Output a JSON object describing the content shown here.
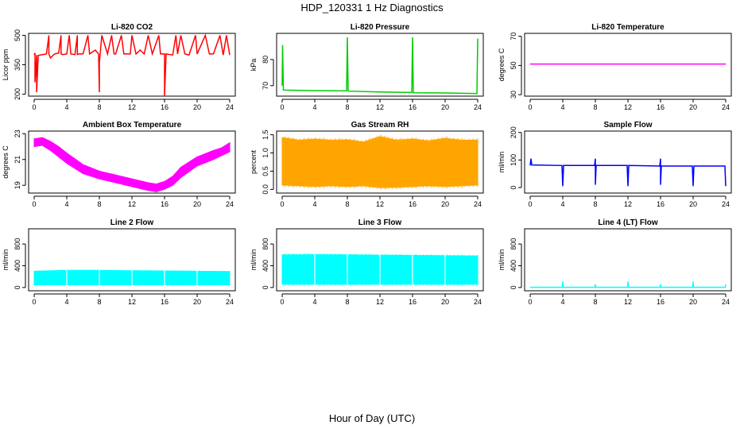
{
  "title": "HDP_120331  1 Hz Diagnostics",
  "xlabel": "Hour of Day (UTC)",
  "chart_data": [
    {
      "type": "line",
      "title": "Li-820 CO2",
      "ylabel": "Licor ppm",
      "color": "#ff0000",
      "xlim": [
        0,
        24
      ],
      "xticks": [
        0,
        4,
        8,
        12,
        16,
        20,
        24
      ],
      "ylim": [
        190,
        510
      ],
      "yticks": [
        200,
        350,
        500
      ],
      "series": [
        {
          "name": "CO2",
          "x": [
            0,
            0.1,
            0.1,
            0.3,
            0.3,
            0.5,
            1.5,
            1.8,
            1.8,
            2.0,
            2.5,
            3.0,
            3.3,
            3.3,
            3.5,
            4.0,
            4.3,
            4.5,
            5.0,
            5.3,
            5.3,
            5.5,
            6.0,
            6.6,
            6.8,
            7.5,
            7.9,
            8.0,
            8.0,
            8.1,
            8.3,
            9.0,
            9.5,
            9.8,
            10.0,
            10.7,
            11.0,
            11.8,
            12.0,
            12.5,
            13.0,
            13.5,
            14.0,
            14.5,
            15.3,
            15.5,
            16.0,
            16.0,
            16.2,
            17.0,
            17.4,
            17.6,
            18.0,
            18.5,
            19.0,
            19.8,
            20.0,
            21.0,
            21.5,
            22.0,
            22.8,
            23.2,
            23.6,
            24.0
          ],
          "y": [
            400,
            410,
            260,
            400,
            210,
            398,
            405,
            500,
            405,
            385,
            405,
            410,
            500,
            405,
            402,
            405,
            500,
            405,
            402,
            500,
            402,
            405,
            405,
            500,
            405,
            425,
            405,
            210,
            360,
            405,
            500,
            405,
            500,
            405,
            405,
            500,
            405,
            405,
            500,
            405,
            425,
            405,
            500,
            405,
            500,
            405,
            405,
            190,
            405,
            400,
            500,
            405,
            500,
            405,
            400,
            500,
            405,
            500,
            405,
            405,
            500,
            400,
            500,
            400
          ]
        }
      ]
    },
    {
      "type": "line",
      "title": "Li-820 Pressure",
      "ylabel": "kPa",
      "color": "#00cc00",
      "xlim": [
        0,
        24
      ],
      "xticks": [
        0,
        4,
        8,
        12,
        16,
        20,
        24
      ],
      "ylim": [
        66,
        90
      ],
      "yticks": [
        70,
        80
      ],
      "series": [
        {
          "name": "Pressure",
          "x": [
            0,
            0.05,
            0.15,
            0.3,
            4.0,
            7.9,
            8.0,
            8.1,
            12.0,
            15.9,
            16.0,
            16.1,
            20.0,
            23.9,
            24.0
          ],
          "y": [
            70,
            85.5,
            68.4,
            68.3,
            68.1,
            68.0,
            88.5,
            67.9,
            67.6,
            67.4,
            88.5,
            67.3,
            67.2,
            67.0,
            88.0
          ]
        }
      ]
    },
    {
      "type": "line",
      "title": "Li-820 Temperature",
      "ylabel": "degrees C",
      "color": "#ff00ff",
      "xlim": [
        0,
        24
      ],
      "xticks": [
        0,
        4,
        8,
        12,
        16,
        20,
        24
      ],
      "ylim": [
        29,
        72
      ],
      "yticks": [
        30,
        50,
        70
      ],
      "series": [
        {
          "name": "Temperature",
          "x": [
            0,
            24
          ],
          "y": [
            51,
            51
          ]
        }
      ]
    },
    {
      "type": "area",
      "title": "Ambient Box Temperature",
      "ylabel": "degrees C",
      "color": "#ff00ff",
      "xlim": [
        0,
        24
      ],
      "xticks": [
        0,
        4,
        8,
        12,
        16,
        20,
        24
      ],
      "ylim": [
        18.4,
        23.2
      ],
      "yticks": [
        19,
        21,
        23
      ],
      "series": [
        {
          "name": "upper",
          "x": [
            0,
            1,
            2,
            3,
            4,
            6,
            8,
            10,
            12,
            14,
            15,
            16,
            17,
            18,
            20,
            22,
            23,
            24
          ],
          "y": [
            22.6,
            22.7,
            22.4,
            22.0,
            21.5,
            20.6,
            20.1,
            19.8,
            19.5,
            19.2,
            19.1,
            19.3,
            19.7,
            20.4,
            21.2,
            21.7,
            21.9,
            22.3
          ]
        },
        {
          "name": "lower",
          "x": [
            0,
            1,
            2,
            3,
            4,
            6,
            8,
            10,
            12,
            14,
            15,
            16,
            17,
            18,
            20,
            22,
            23,
            24
          ],
          "y": [
            22.0,
            22.1,
            21.7,
            21.2,
            20.7,
            19.9,
            19.5,
            19.2,
            18.9,
            18.6,
            18.5,
            18.7,
            19.0,
            19.6,
            20.5,
            21.0,
            21.3,
            21.6
          ]
        }
      ]
    },
    {
      "type": "area",
      "title": "Gas Stream RH",
      "ylabel": "percent",
      "color": "#ffa500",
      "xlim": [
        0,
        24
      ],
      "xticks": [
        0,
        4,
        8,
        12,
        16,
        20,
        24
      ],
      "ylim": [
        -0.1,
        1.6
      ],
      "yticks": [
        0.0,
        0.5,
        1.0,
        1.5
      ],
      "series": [
        {
          "name": "upper",
          "x": [
            0,
            2,
            4,
            6,
            8,
            10,
            12,
            14,
            16,
            18,
            20,
            22,
            24
          ],
          "y": [
            1.42,
            1.35,
            1.38,
            1.35,
            1.36,
            1.3,
            1.45,
            1.35,
            1.38,
            1.33,
            1.4,
            1.35,
            1.35
          ]
        },
        {
          "name": "lower",
          "x": [
            0,
            2,
            4,
            6,
            8,
            10,
            12,
            14,
            16,
            18,
            20,
            22,
            24
          ],
          "y": [
            0.12,
            0.1,
            0.08,
            0.1,
            0.08,
            0.1,
            0.05,
            0.06,
            0.08,
            0.1,
            0.08,
            0.1,
            0.12
          ]
        }
      ]
    },
    {
      "type": "line",
      "title": "Sample Flow",
      "ylabel": "ml/min",
      "color": "#0000ff",
      "xlim": [
        0,
        24
      ],
      "xticks": [
        0,
        4,
        8,
        12,
        16,
        20,
        24
      ],
      "ylim": [
        -20,
        205
      ],
      "yticks": [
        0,
        100,
        200
      ],
      "series": [
        {
          "name": "Sample Flow",
          "x": [
            0,
            0.1,
            0.2,
            3.9,
            4.0,
            4.1,
            7.9,
            8.0,
            8.0,
            8.1,
            11.9,
            12.0,
            12.1,
            15.9,
            16.0,
            16.0,
            16.1,
            19.9,
            20.0,
            20.1,
            23.9,
            24.0
          ],
          "y": [
            80,
            105,
            82,
            80,
            5,
            80,
            80,
            105,
            10,
            80,
            80,
            5,
            80,
            78,
            105,
            10,
            78,
            78,
            5,
            78,
            78,
            5
          ]
        }
      ]
    },
    {
      "type": "area",
      "title": "Line 2 Flow",
      "ylabel": "ml/min",
      "color": "#00ffff",
      "xlim": [
        0,
        24
      ],
      "xticks": [
        0,
        4,
        8,
        12,
        16,
        20,
        24
      ],
      "ylim": [
        -60,
        1080
      ],
      "yticks": [
        0,
        400,
        800
      ],
      "series": [
        {
          "name": "upper",
          "x": [
            0,
            4,
            8,
            12,
            16,
            20,
            24
          ],
          "y": [
            300,
            315,
            315,
            310,
            305,
            300,
            295
          ]
        },
        {
          "name": "lower",
          "x": [
            0,
            4,
            8,
            12,
            16,
            20,
            24
          ],
          "y": [
            50,
            50,
            50,
            50,
            50,
            50,
            50
          ]
        }
      ]
    },
    {
      "type": "area",
      "title": "Line 3 Flow",
      "ylabel": "ml/min",
      "color": "#00ffff",
      "xlim": [
        0,
        24
      ],
      "xticks": [
        0,
        4,
        8,
        12,
        16,
        20,
        24
      ],
      "ylim": [
        -60,
        1080
      ],
      "yticks": [
        0,
        400,
        800
      ],
      "series": [
        {
          "name": "upper",
          "x": [
            0,
            4,
            8,
            12,
            16,
            20,
            24
          ],
          "y": [
            600,
            605,
            600,
            595,
            590,
            585,
            580
          ]
        },
        {
          "name": "lower",
          "x": [
            0,
            4,
            8,
            12,
            16,
            20,
            24
          ],
          "y": [
            60,
            60,
            60,
            60,
            60,
            60,
            60
          ]
        }
      ]
    },
    {
      "type": "line",
      "title": "Line 4 (LT) Flow",
      "ylabel": "ml/min",
      "color": "#00ffff",
      "xlim": [
        0,
        24
      ],
      "xticks": [
        0,
        4,
        8,
        12,
        16,
        20,
        24
      ],
      "ylim": [
        -60,
        1080
      ],
      "yticks": [
        0,
        400,
        800
      ],
      "series": [
        {
          "name": "Line 4 Flow",
          "x": [
            0,
            3.95,
            4.0,
            4.05,
            7.95,
            8.0,
            8.05,
            11.95,
            12.0,
            12.05,
            15.95,
            16.0,
            16.05,
            19.95,
            20.0,
            20.05,
            23.95,
            24.0
          ],
          "y": [
            5,
            5,
            110,
            5,
            5,
            60,
            5,
            5,
            110,
            5,
            5,
            60,
            5,
            5,
            110,
            5,
            5,
            60
          ]
        }
      ]
    }
  ]
}
